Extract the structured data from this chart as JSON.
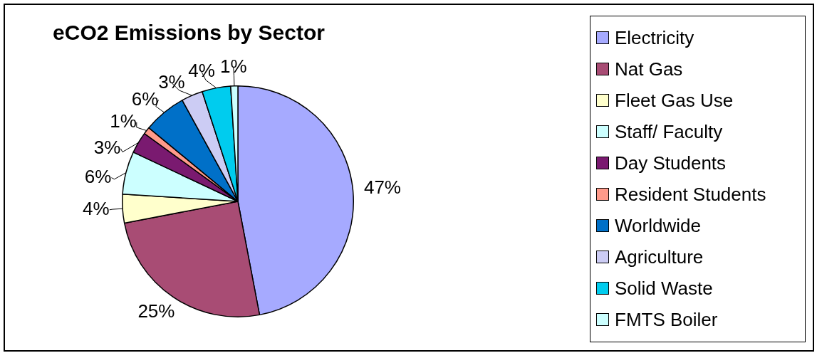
{
  "chart_data": {
    "type": "pie",
    "title": "eCO2 Emissions by Sector",
    "categories": [
      "Electricity",
      "Nat Gas",
      "Fleet Gas Use",
      "Staff/ Faculty",
      "Day Students",
      "Resident Students",
      "Worldwide",
      "Agriculture",
      "Solid Waste",
      "FMTS Boiler"
    ],
    "values": [
      47,
      25,
      4,
      6,
      3,
      1,
      6,
      3,
      4,
      1
    ],
    "value_labels": [
      "47%",
      "25%",
      "4%",
      "6%",
      "3%",
      "1%",
      "6%",
      "3%",
      "4%",
      "1%"
    ],
    "colors": [
      "#a6aaff",
      "#a84c74",
      "#ffffcc",
      "#ccffff",
      "#7a1a70",
      "#ff9a8a",
      "#0070c8",
      "#ccccf4",
      "#00ccee",
      "#ccffff"
    ],
    "legend": "right"
  }
}
